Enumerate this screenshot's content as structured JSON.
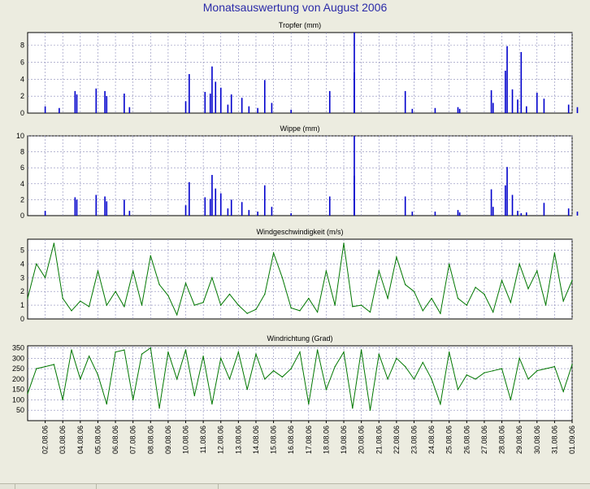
{
  "title": "Monatsauswertung von August 2006",
  "colors": {
    "rain": "#0000cc",
    "wind": "#007700",
    "plot_bg": "#ffffff",
    "grid": "#8a8ab8",
    "page_bg": "#ecece0"
  },
  "chart_data": [
    {
      "type": "bar",
      "title": "Tropfer (mm)",
      "ylim": [
        0,
        9.5
      ],
      "yticks": [
        0,
        2,
        4,
        6,
        8
      ],
      "values": [
        [
          1.0,
          0.8
        ],
        [
          1.8,
          0.6
        ],
        [
          2.7,
          2.6
        ],
        [
          2.8,
          2.2
        ],
        [
          3.9,
          2.9
        ],
        [
          4.4,
          2.6
        ],
        [
          4.5,
          2.0
        ],
        [
          5.5,
          2.3
        ],
        [
          5.8,
          0.7
        ],
        [
          9.0,
          1.4
        ],
        [
          9.2,
          4.6
        ],
        [
          10.1,
          2.5
        ],
        [
          10.4,
          2.3
        ],
        [
          10.5,
          5.5
        ],
        [
          10.7,
          3.7
        ],
        [
          11.0,
          3.0
        ],
        [
          11.4,
          1.0
        ],
        [
          11.6,
          2.2
        ],
        [
          12.2,
          1.8
        ],
        [
          12.6,
          0.8
        ],
        [
          13.1,
          0.6
        ],
        [
          13.5,
          3.9
        ],
        [
          13.9,
          1.2
        ],
        [
          15.0,
          0.4
        ],
        [
          17.2,
          2.6
        ],
        [
          18.6,
          9.5
        ],
        [
          18.6,
          4.8
        ],
        [
          21.5,
          2.6
        ],
        [
          21.9,
          0.5
        ],
        [
          23.2,
          0.6
        ],
        [
          24.5,
          0.7
        ],
        [
          24.6,
          0.5
        ],
        [
          26.4,
          2.7
        ],
        [
          26.5,
          1.2
        ],
        [
          27.2,
          5.0
        ],
        [
          27.3,
          7.9
        ],
        [
          27.6,
          2.8
        ],
        [
          27.9,
          1.6
        ],
        [
          28.1,
          7.2
        ],
        [
          28.4,
          0.8
        ],
        [
          29.0,
          2.4
        ],
        [
          29.4,
          1.7
        ],
        [
          30.8,
          1.0
        ],
        [
          31.3,
          0.7
        ]
      ]
    },
    {
      "type": "bar",
      "title": "Wippe (mm)",
      "ylim": [
        0,
        10
      ],
      "yticks": [
        0,
        2,
        4,
        6,
        8,
        10
      ],
      "values": [
        [
          1.0,
          0.6
        ],
        [
          2.7,
          2.3
        ],
        [
          2.8,
          2.0
        ],
        [
          3.9,
          2.6
        ],
        [
          4.4,
          2.4
        ],
        [
          4.5,
          1.8
        ],
        [
          5.5,
          2.0
        ],
        [
          5.8,
          0.6
        ],
        [
          9.0,
          1.3
        ],
        [
          9.2,
          4.2
        ],
        [
          10.1,
          2.3
        ],
        [
          10.4,
          2.1
        ],
        [
          10.5,
          5.1
        ],
        [
          10.7,
          3.4
        ],
        [
          11.0,
          2.8
        ],
        [
          11.4,
          0.9
        ],
        [
          11.6,
          2.0
        ],
        [
          12.2,
          1.7
        ],
        [
          12.6,
          0.7
        ],
        [
          13.1,
          0.5
        ],
        [
          13.5,
          3.8
        ],
        [
          13.9,
          1.1
        ],
        [
          15.0,
          0.3
        ],
        [
          17.2,
          2.4
        ],
        [
          18.6,
          10.0
        ],
        [
          18.6,
          5.0
        ],
        [
          21.5,
          2.4
        ],
        [
          21.9,
          0.5
        ],
        [
          23.2,
          0.5
        ],
        [
          24.5,
          0.7
        ],
        [
          24.6,
          0.4
        ],
        [
          26.4,
          3.3
        ],
        [
          26.5,
          1.1
        ],
        [
          27.2,
          3.8
        ],
        [
          27.3,
          6.1
        ],
        [
          27.6,
          2.6
        ],
        [
          27.9,
          0.6
        ],
        [
          28.1,
          0.3
        ],
        [
          28.4,
          0.4
        ],
        [
          29.4,
          1.6
        ],
        [
          30.8,
          0.9
        ],
        [
          31.3,
          0.5
        ]
      ]
    },
    {
      "type": "line",
      "title": "Windgeschwindigkeit (m/s)",
      "ylim": [
        0,
        5.8
      ],
      "yticks": [
        0,
        1,
        2,
        3,
        4,
        5
      ],
      "x": [
        0,
        0.5,
        1,
        1.5,
        2,
        2.5,
        3,
        3.5,
        4,
        4.5,
        5,
        5.5,
        6,
        6.5,
        7,
        7.5,
        8,
        8.5,
        9,
        9.5,
        10,
        10.5,
        11,
        11.5,
        12,
        12.5,
        13,
        13.5,
        14,
        14.5,
        15,
        15.5,
        16,
        16.5,
        17,
        17.5,
        18,
        18.5,
        19,
        19.5,
        20,
        20.5,
        21,
        21.5,
        22,
        22.5,
        23,
        23.5,
        24,
        24.5,
        25,
        25.5,
        26,
        26.5,
        27,
        27.5,
        28,
        28.5,
        29,
        29.5,
        30,
        30.5,
        31
      ],
      "values": [
        1.5,
        4.0,
        3.0,
        5.5,
        1.5,
        0.6,
        1.3,
        0.9,
        3.5,
        1.0,
        2.0,
        0.9,
        3.5,
        1.0,
        4.6,
        2.5,
        1.7,
        0.3,
        2.6,
        1.0,
        1.2,
        3.0,
        1.0,
        1.8,
        1.0,
        0.4,
        0.7,
        1.8,
        4.8,
        3.0,
        0.8,
        0.6,
        1.5,
        0.5,
        3.5,
        1.0,
        5.5,
        0.9,
        1.0,
        0.5,
        3.5,
        1.5,
        4.5,
        2.5,
        2.0,
        0.6,
        1.5,
        0.4,
        4.0,
        1.5,
        1.0,
        2.3,
        1.8,
        0.5,
        2.8,
        1.2,
        4.0,
        2.2,
        3.5,
        1.0,
        4.8,
        1.3,
        2.8
      ]
    },
    {
      "type": "line",
      "title": "Windrichtung (Grad)",
      "ylim": [
        0,
        360
      ],
      "yticks": [
        50,
        100,
        150,
        200,
        250,
        300,
        350
      ],
      "x": [
        0,
        0.5,
        1,
        1.5,
        2,
        2.5,
        3,
        3.5,
        4,
        4.5,
        5,
        5.5,
        6,
        6.5,
        7,
        7.5,
        8,
        8.5,
        9,
        9.5,
        10,
        10.5,
        11,
        11.5,
        12,
        12.5,
        13,
        13.5,
        14,
        14.5,
        15,
        15.5,
        16,
        16.5,
        17,
        17.5,
        18,
        18.5,
        19,
        19.5,
        20,
        20.5,
        21,
        21.5,
        22,
        22.5,
        23,
        23.5,
        24,
        24.5,
        25,
        25.5,
        26,
        26.5,
        27,
        27.5,
        28,
        28.5,
        29,
        29.5,
        30,
        30.5,
        31
      ],
      "values": [
        130,
        250,
        260,
        270,
        100,
        340,
        200,
        310,
        220,
        80,
        330,
        340,
        100,
        320,
        350,
        60,
        330,
        200,
        340,
        120,
        310,
        80,
        300,
        200,
        330,
        150,
        320,
        200,
        240,
        210,
        250,
        330,
        80,
        340,
        150,
        260,
        330,
        60,
        340,
        50,
        320,
        200,
        300,
        260,
        200,
        280,
        200,
        80,
        330,
        150,
        220,
        200,
        230,
        240,
        250,
        100,
        300,
        200,
        240,
        250,
        260,
        140,
        270
      ]
    }
  ],
  "x_ticks": [
    "02.08.06",
    "03.08.06",
    "04.08.06",
    "05.08.06",
    "06.08.06",
    "07.08.06",
    "08.08.06",
    "09.08.06",
    "10.08.06",
    "11.08.06",
    "12.08.06",
    "13.08.06",
    "14.08.06",
    "15.08.06",
    "16.08.06",
    "17.08.06",
    "18.08.06",
    "19.08.06",
    "20.08.06",
    "21.08.06",
    "22.08.06",
    "23.08.06",
    "24.08.06",
    "25.08.06",
    "26.08.06",
    "27.08.06",
    "28.08.06",
    "29.08.06",
    "30.08.06",
    "31.08.06",
    "01.09.06"
  ]
}
